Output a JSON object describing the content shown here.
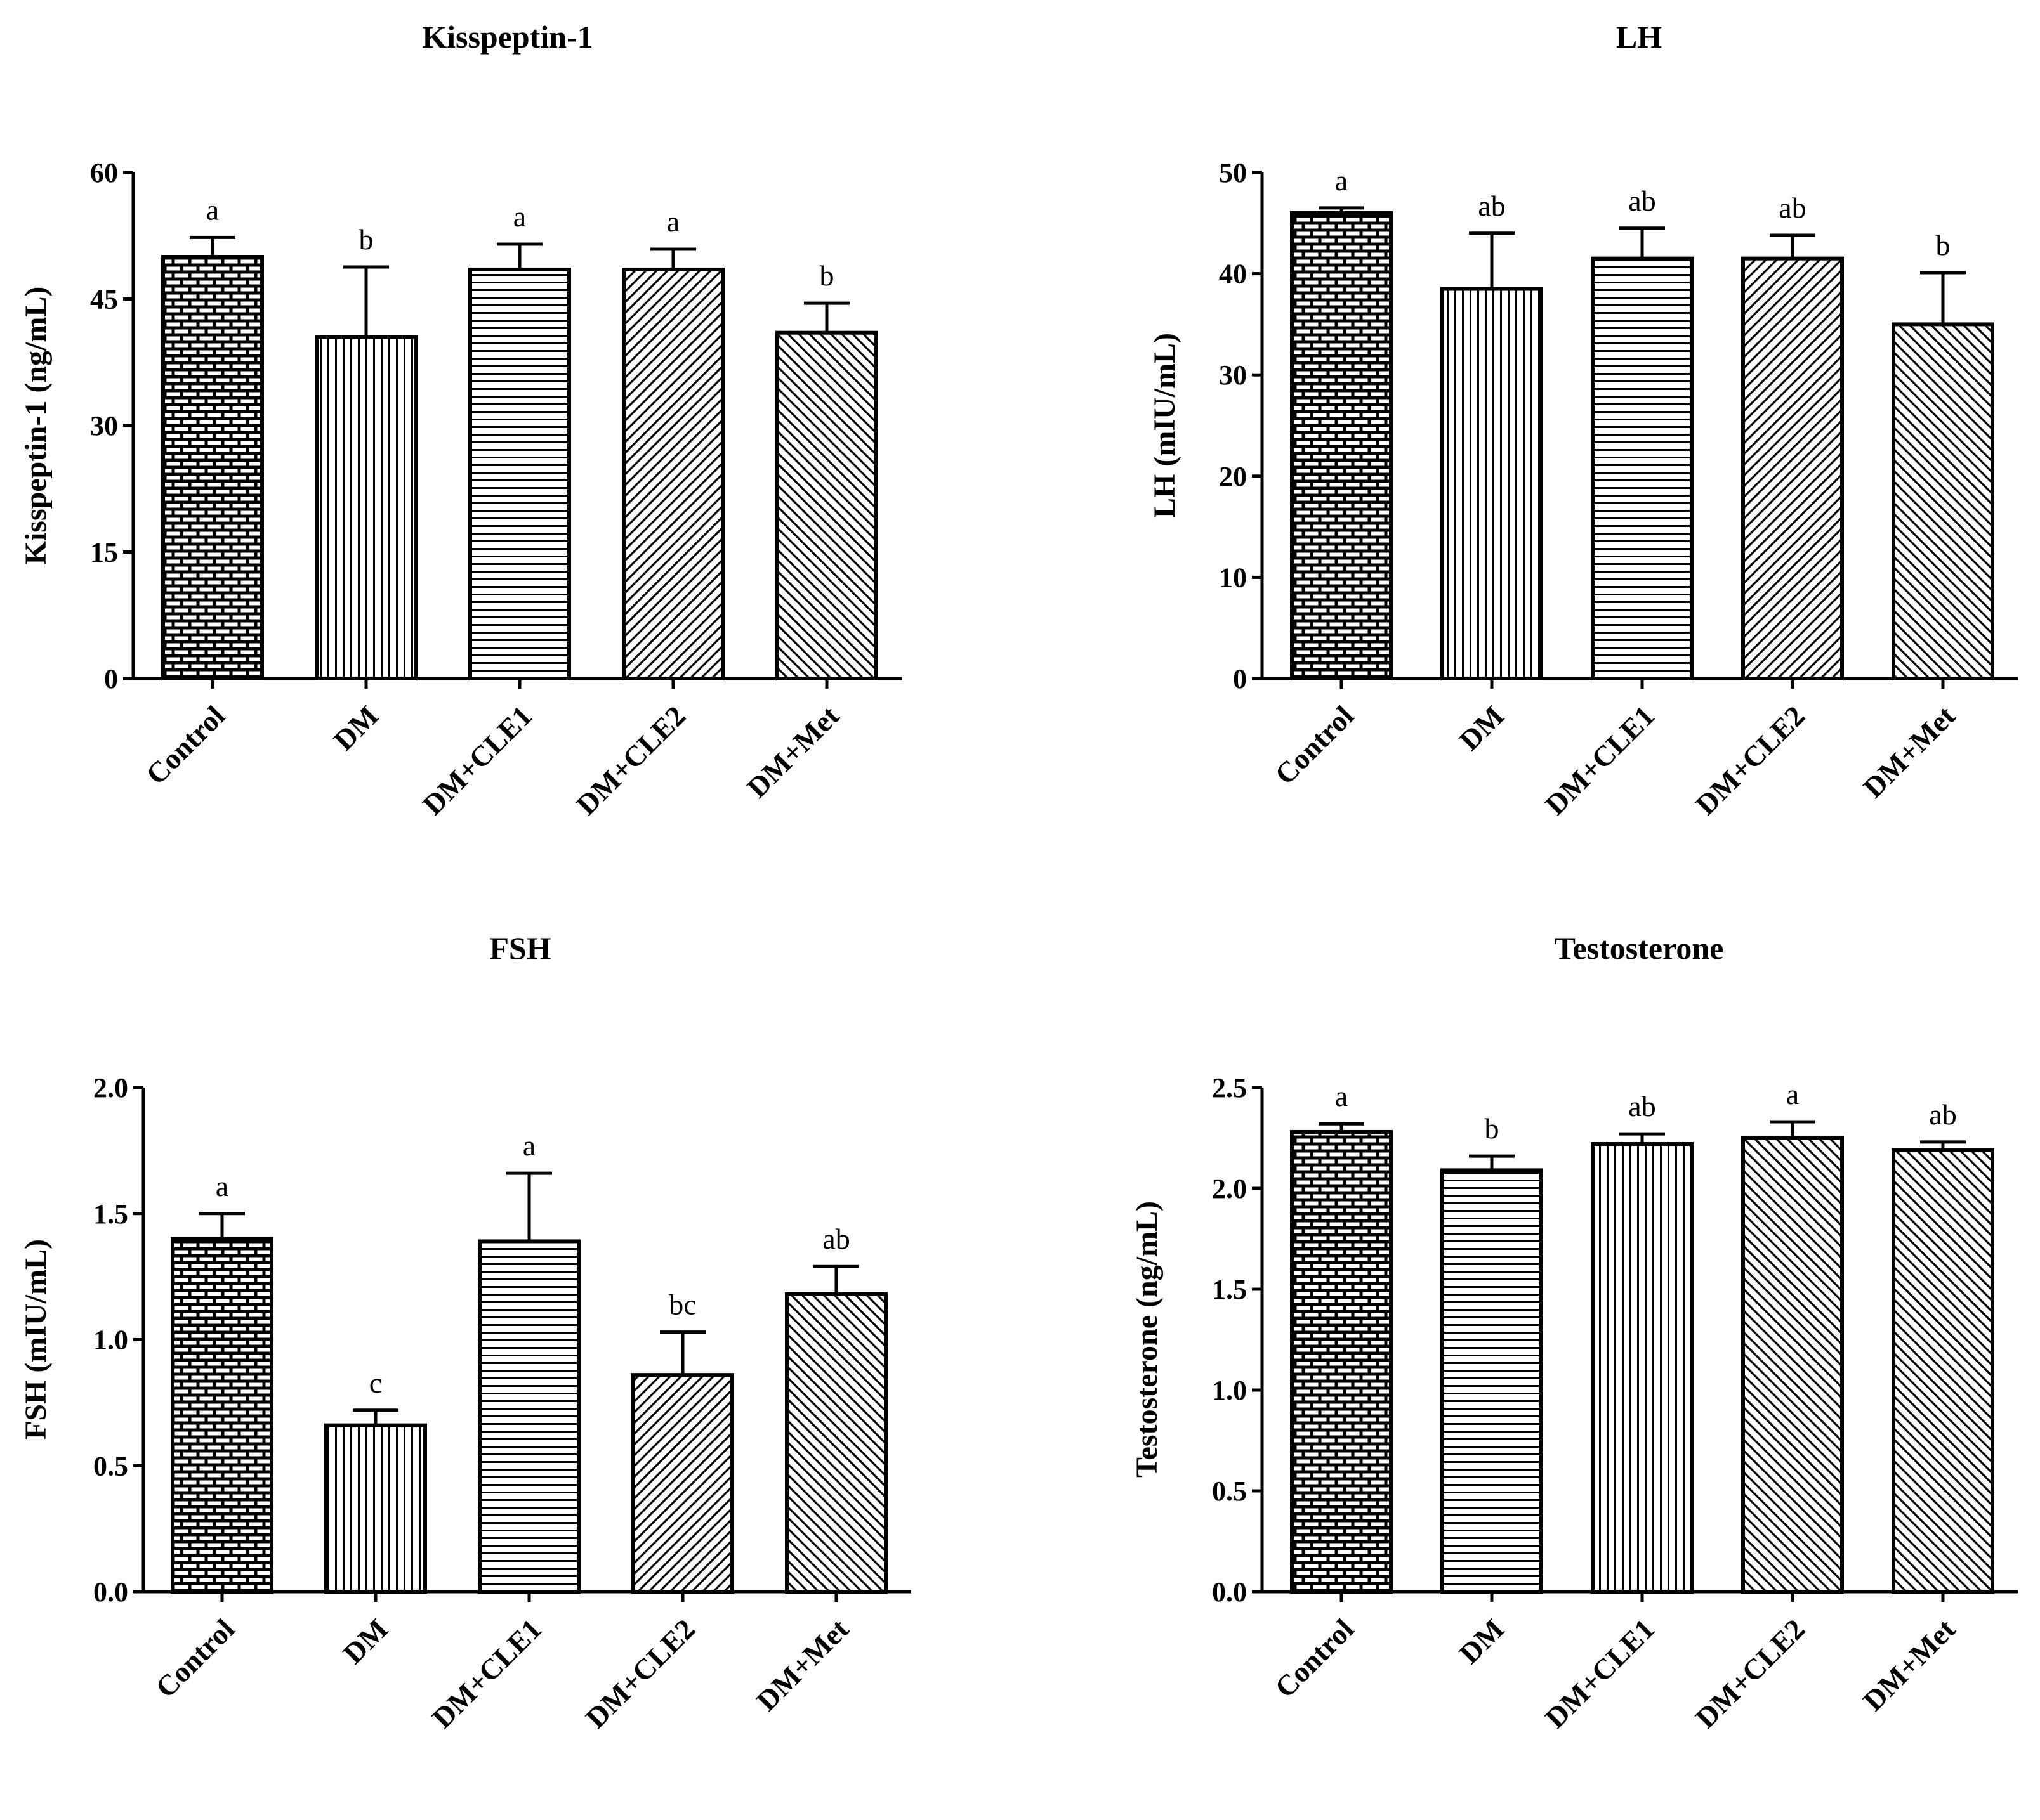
{
  "figure": {
    "categories": [
      "Control",
      "DM",
      "DM+CLE1",
      "DM+CLE2",
      "DM+Met"
    ]
  },
  "chart_data": [
    {
      "type": "bar",
      "title": "Kisspeptin-1",
      "ylabel": "Kisspeptin-1 (ng/mL)",
      "xlabel": "",
      "categories": [
        "Control",
        "DM",
        "DM+CLE1",
        "DM+CLE2",
        "DM+Met"
      ],
      "values": [
        50,
        40.5,
        48.5,
        48.5,
        41
      ],
      "errors": [
        2.3,
        8.3,
        3.0,
        2.4,
        3.5
      ],
      "significance": [
        "a",
        "b",
        "a",
        "a",
        "b"
      ],
      "patterns": [
        "brick",
        "vertical",
        "horizontal",
        "diag-left",
        "diag-right"
      ],
      "ylim": [
        0,
        60
      ],
      "yticks": [
        0,
        15,
        30,
        45,
        60
      ],
      "ytick_labels": [
        "0",
        "15",
        "30",
        "45",
        "60"
      ]
    },
    {
      "type": "bar",
      "title": "LH",
      "ylabel": "LH (mIU/mL)",
      "xlabel": "",
      "categories": [
        "Control",
        "DM",
        "DM+CLE1",
        "DM+CLE2",
        "DM+Met"
      ],
      "values": [
        46,
        38.5,
        41.5,
        41.5,
        35
      ],
      "errors": [
        0.5,
        5.5,
        3.0,
        2.3,
        5.1
      ],
      "significance": [
        "a",
        "ab",
        "ab",
        "ab",
        "b"
      ],
      "patterns": [
        "brick",
        "vertical",
        "horizontal",
        "diag-left",
        "diag-right"
      ],
      "ylim": [
        0,
        50
      ],
      "yticks": [
        0,
        10,
        20,
        30,
        40,
        50
      ],
      "ytick_labels": [
        "0",
        "10",
        "20",
        "30",
        "40",
        "50"
      ]
    },
    {
      "type": "bar",
      "title": "FSH",
      "ylabel": "FSH (mIU/mL)",
      "xlabel": "",
      "categories": [
        "Control",
        "DM",
        "DM+CLE1",
        "DM+CLE2",
        "DM+Met"
      ],
      "values": [
        1.4,
        0.66,
        1.39,
        0.86,
        1.18
      ],
      "errors": [
        0.1,
        0.06,
        0.27,
        0.17,
        0.11
      ],
      "significance": [
        "a",
        "c",
        "a",
        "bc",
        "ab"
      ],
      "patterns": [
        "brick",
        "vertical",
        "horizontal",
        "diag-left",
        "diag-right"
      ],
      "ylim": [
        0,
        2.0
      ],
      "yticks": [
        0,
        0.5,
        1.0,
        1.5,
        2.0
      ],
      "ytick_labels": [
        "0.0",
        "0.5",
        "1.0",
        "1.5",
        "2.0"
      ]
    },
    {
      "type": "bar",
      "title": "Testosterone",
      "ylabel": "Testosterone (ng/mL)",
      "xlabel": "",
      "categories": [
        "Control",
        "DM",
        "DM+CLE1",
        "DM+CLE2",
        "DM+Met"
      ],
      "values": [
        2.28,
        2.09,
        2.22,
        2.25,
        2.19
      ],
      "errors": [
        0.04,
        0.07,
        0.05,
        0.08,
        0.04
      ],
      "significance": [
        "a",
        "b",
        "ab",
        "a",
        "ab"
      ],
      "patterns": [
        "brick",
        "horizontal",
        "vertical",
        "diag-right",
        "diag-right"
      ],
      "ylim": [
        0,
        2.5
      ],
      "yticks": [
        0,
        0.5,
        1.0,
        1.5,
        2.0,
        2.5
      ],
      "ytick_labels": [
        "0.0",
        "0.5",
        "1.0",
        "1.5",
        "2.0",
        "2.5"
      ]
    }
  ]
}
